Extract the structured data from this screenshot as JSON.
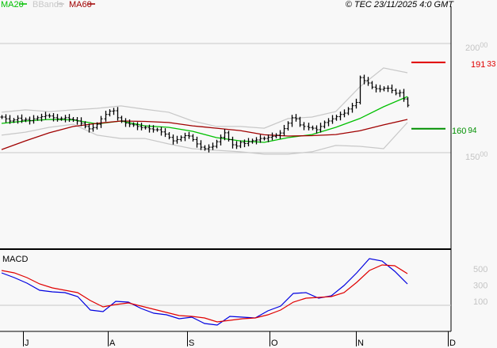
{
  "legend": {
    "ma20": {
      "label": "MA20",
      "color": "#00c000"
    },
    "bbands": {
      "label": "BBands",
      "color": "#c8c8c8"
    },
    "ma60": {
      "label": "MA60",
      "color": "#a00000"
    }
  },
  "copyright": "© TEC 23/11/2025 4:0 GMT",
  "chart_data": [
    {
      "type": "line",
      "panel": "price",
      "ylim": [
        140,
        210
      ],
      "grid": true,
      "legend_placement": "top-left",
      "y_ticks": [
        {
          "value": 200,
          "main": "200",
          "sup": "00"
        },
        {
          "value": 150,
          "main": "150",
          "sup": "00"
        }
      ],
      "x_ticks": [
        "J",
        "A",
        "S",
        "O",
        "N",
        "D"
      ],
      "closes": [
        166.3,
        165.5,
        164.5,
        165,
        165.8,
        164.9,
        165.2,
        164.6,
        165.5,
        166,
        166.5,
        167,
        166.8,
        166,
        165.5,
        165.6,
        166,
        165.4,
        165,
        164.5,
        163.5,
        162,
        160.9,
        161.5,
        163,
        165.5,
        167.5,
        169,
        169.2,
        166,
        164.5,
        163.5,
        163,
        162.7,
        162,
        161.5,
        161.5,
        160.9,
        160.5,
        160.5,
        159.5,
        158.5,
        157,
        155.4,
        156,
        157,
        157.8,
        157.6,
        156,
        154,
        152.5,
        151.8,
        152.5,
        152.9,
        155,
        157,
        159.1,
        156,
        153.6,
        153,
        154.7,
        154.2,
        155,
        155.5,
        155.8,
        156.5,
        156.5,
        157,
        157.5,
        158,
        159,
        161,
        163.5,
        166,
        165.5,
        162.7,
        162,
        161.5,
        161.2,
        160.5,
        162,
        163.8,
        164.5,
        165.5,
        166.5,
        167.5,
        168.1,
        170,
        171.5,
        173,
        184.4,
        183,
        181.9,
        180,
        179.3,
        179,
        179.5,
        179.5,
        178.5,
        177.2,
        177.5,
        174.6,
        171.7
      ],
      "series": [
        {
          "name": "MA20",
          "color": "#00c000",
          "values": [
            163.4,
            164.5,
            165.2,
            165.0,
            163.2,
            164.5,
            162.3,
            161.6,
            159.8,
            156.9,
            155.4,
            154.7,
            156.9,
            158.3,
            161.6,
            165.6,
            171.0,
            175.7
          ]
        },
        {
          "name": "MA60",
          "color": "#a00000",
          "values": [
            151.4,
            155.4,
            159.1,
            162.0,
            163.4,
            164.5,
            164.3,
            163.8,
            162.3,
            161.2,
            160.1,
            158.2,
            157.6,
            157.8,
            158.3,
            160.0,
            162.7,
            165.2
          ]
        },
        {
          "name": "BBands",
          "band": "upper",
          "color": "#c8c8c8",
          "values": [
            168.5,
            169.6,
            168.8,
            169.6,
            170.3,
            171.4,
            169.9,
            168.5,
            164.5,
            162.0,
            162.0,
            161.2,
            165.6,
            166.3,
            168.8,
            180.1,
            188.8,
            186.6
          ]
        },
        {
          "name": "BBands",
          "band": "lower",
          "color": "#c8c8c8",
          "values": [
            158.0,
            159.4,
            161.6,
            163.0,
            158.0,
            156.5,
            156.5,
            154.0,
            151.8,
            151.1,
            150.4,
            149.3,
            149.3,
            150.4,
            153.3,
            152.9,
            151.8,
            163.8
          ]
        }
      ],
      "levels": [
        {
          "value": 191.33,
          "main": "191",
          "sup": "33",
          "color": "#e00000"
        },
        {
          "value": 160.94,
          "main": "160",
          "sup": "94",
          "color": "#009000"
        }
      ]
    },
    {
      "type": "line",
      "panel": "macd",
      "title": "MACD",
      "y_ticks": [
        500,
        300,
        100
      ],
      "series": [
        {
          "color": "#0000e0",
          "values": [
            451,
            393,
            324,
            237,
            217,
            207,
            159,
            -7,
            -27,
            100,
            90,
            12,
            -46,
            -66,
            -115,
            -95,
            -173,
            -193,
            -85,
            -95,
            -105,
            -17,
            41,
            198,
            207,
            139,
            168,
            295,
            451,
            627,
            598,
            471,
            315
          ]
        },
        {
          "color": "#e00000",
          "values": [
            481,
            451,
            393,
            315,
            266,
            237,
            207,
            110,
            32,
            61,
            80,
            41,
            2,
            -37,
            -76,
            -85,
            -105,
            -154,
            -134,
            -115,
            -105,
            -66,
            -7,
            90,
            139,
            149,
            159,
            207,
            334,
            481,
            549,
            539,
            442
          ]
        }
      ]
    }
  ]
}
